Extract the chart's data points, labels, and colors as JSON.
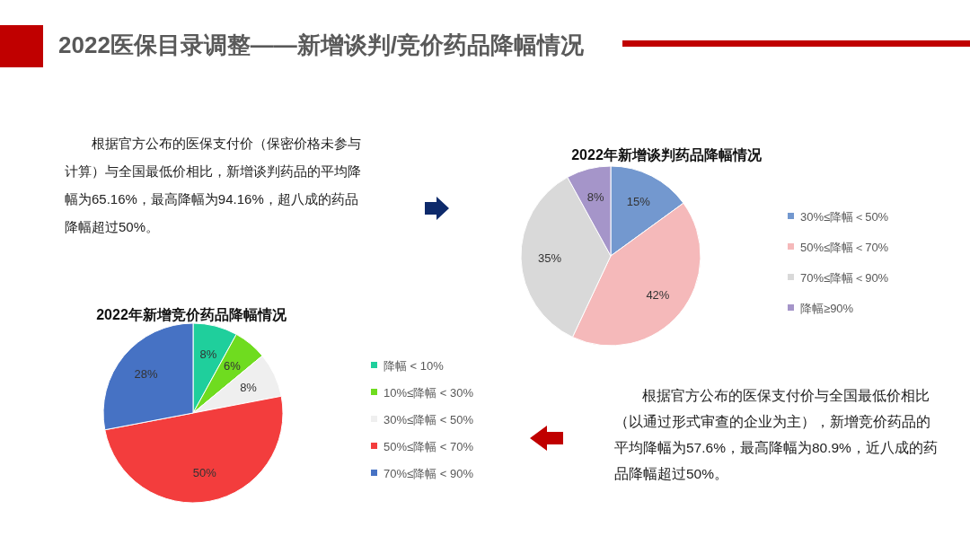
{
  "chart_data": [
    {
      "type": "other",
      "title": "2022医保目录调整——新增谈判/竞价药品降幅情况"
    },
    {
      "type": "pie",
      "title": "2022年新增谈判药品降幅情况",
      "categories": [
        "30%≤降幅＜50%",
        "50%≤降幅＜70%",
        "70%≤降幅＜90%",
        "降幅≥90%"
      ],
      "values": [
        15,
        42,
        35,
        8
      ],
      "value_labels": [
        "15%",
        "42%",
        "35%",
        "8%"
      ],
      "colors": [
        "#7398cf",
        "#f5b9ba",
        "#d9d9d9",
        "#a595c9"
      ],
      "legend": "right",
      "annotations": [
        "根据官方公布的医保支付价（保密价格未参与计算）与全国最低价相比，新增谈判药品的平均降幅为65.16%，最高降幅为94.16%，超八成的药品降幅超过50%。"
      ]
    },
    {
      "type": "pie",
      "title": "2022年新增竞价药品降幅情况",
      "categories": [
        "降幅 < 10%",
        "10%≤降幅 < 30%",
        "30%≤降幅 < 50%",
        "50%≤降幅 < 70%",
        "70%≤降幅 < 90%"
      ],
      "values": [
        8,
        6,
        8,
        50,
        28
      ],
      "value_labels": [
        "8%",
        "6%",
        "8%",
        "50%",
        "28%"
      ],
      "colors": [
        "#1fcf9c",
        "#6fdc1f",
        "#efefef",
        "#f33d3d",
        "#4672c4"
      ],
      "legend": "right",
      "annotations": [
        "根据官方公布的医保支付价与全国最低价相比（以通过形式审查的企业为主），新增竞价药品的平均降幅为57.6%，最高降幅为80.9%，近八成的药品降幅超过50%。"
      ]
    }
  ]
}
